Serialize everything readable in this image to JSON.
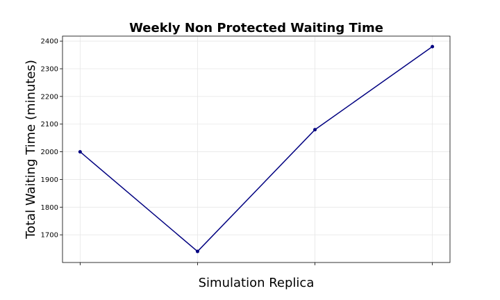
{
  "chart_data": {
    "type": "line",
    "title": "Weekly Non Protected Waiting Time",
    "xlabel": "Simulation Replica",
    "ylabel": "Total Waiting Time (minutes)",
    "x": [
      1,
      2,
      3,
      4
    ],
    "xticklabels": [
      "",
      "",
      "",
      ""
    ],
    "yticks": [
      1700,
      1800,
      1900,
      2000,
      2100,
      2200,
      2300,
      2400
    ],
    "ylim": [
      1600,
      2418
    ],
    "xlim": [
      0.85,
      4.15
    ],
    "grid": true,
    "series": [
      {
        "values": [
          2000,
          1640,
          2080,
          2380
        ],
        "color": "#000080"
      }
    ]
  }
}
